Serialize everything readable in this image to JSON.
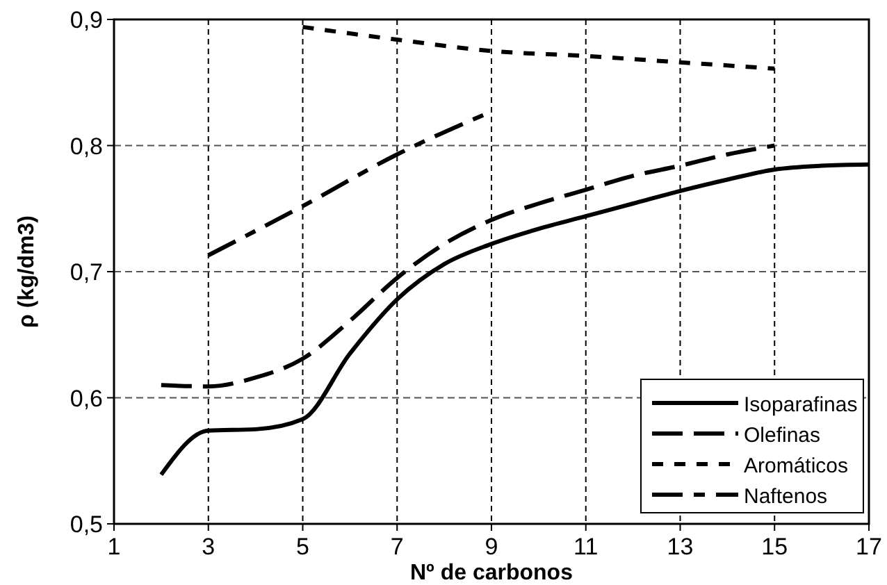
{
  "chart_data": {
    "type": "line",
    "xlabel": "Nº de carbonos",
    "ylabel": "ρ (kg/dm3)",
    "xlim": [
      1,
      17
    ],
    "xticks": [
      1,
      3,
      5,
      7,
      9,
      11,
      13,
      15,
      17
    ],
    "ylim": [
      0.5,
      0.9
    ],
    "yticks": [
      {
        "value": 0.5,
        "label": "0,5"
      },
      {
        "value": 0.6,
        "label": "0,6"
      },
      {
        "value": 0.7,
        "label": "0,7"
      },
      {
        "value": 0.8,
        "label": "0,8"
      },
      {
        "value": 0.9,
        "label": "0,9"
      }
    ],
    "grid": true,
    "legend": "bottom right",
    "marker": "none",
    "series": [
      {
        "name": "Isoparafinas",
        "color": "#000000",
        "line_style": "solid",
        "x": [
          2,
          3,
          4,
          5,
          6,
          7,
          8,
          9,
          10,
          11,
          12,
          13,
          14,
          15,
          16,
          17
        ],
        "values": [
          0.539,
          0.574,
          0.575,
          0.583,
          0.635,
          0.678,
          0.706,
          0.722,
          0.734,
          0.744,
          0.754,
          0.764,
          0.773,
          0.781,
          0.784,
          0.785
        ]
      },
      {
        "name": "Olefinas",
        "color": "#000000",
        "line_style": "dashed",
        "x": [
          2,
          3,
          4,
          5,
          6,
          7,
          8,
          9,
          10,
          11,
          12,
          13,
          14,
          15
        ],
        "values": [
          0.61,
          0.609,
          0.616,
          0.631,
          0.661,
          0.695,
          0.722,
          0.741,
          0.754,
          0.765,
          0.776,
          0.784,
          0.793,
          0.8
        ]
      },
      {
        "name": "Aromáticos",
        "color": "#000000",
        "line_style": "dotted",
        "x": [
          5,
          7,
          9,
          11,
          13,
          15
        ],
        "values": [
          0.894,
          0.884,
          0.875,
          0.871,
          0.866,
          0.861
        ]
      },
      {
        "name": "Naftenos",
        "color": "#000000",
        "line_style": "dashdot",
        "x": [
          3,
          5,
          7,
          9
        ],
        "values": [
          0.713,
          0.752,
          0.793,
          0.827
        ]
      }
    ]
  }
}
